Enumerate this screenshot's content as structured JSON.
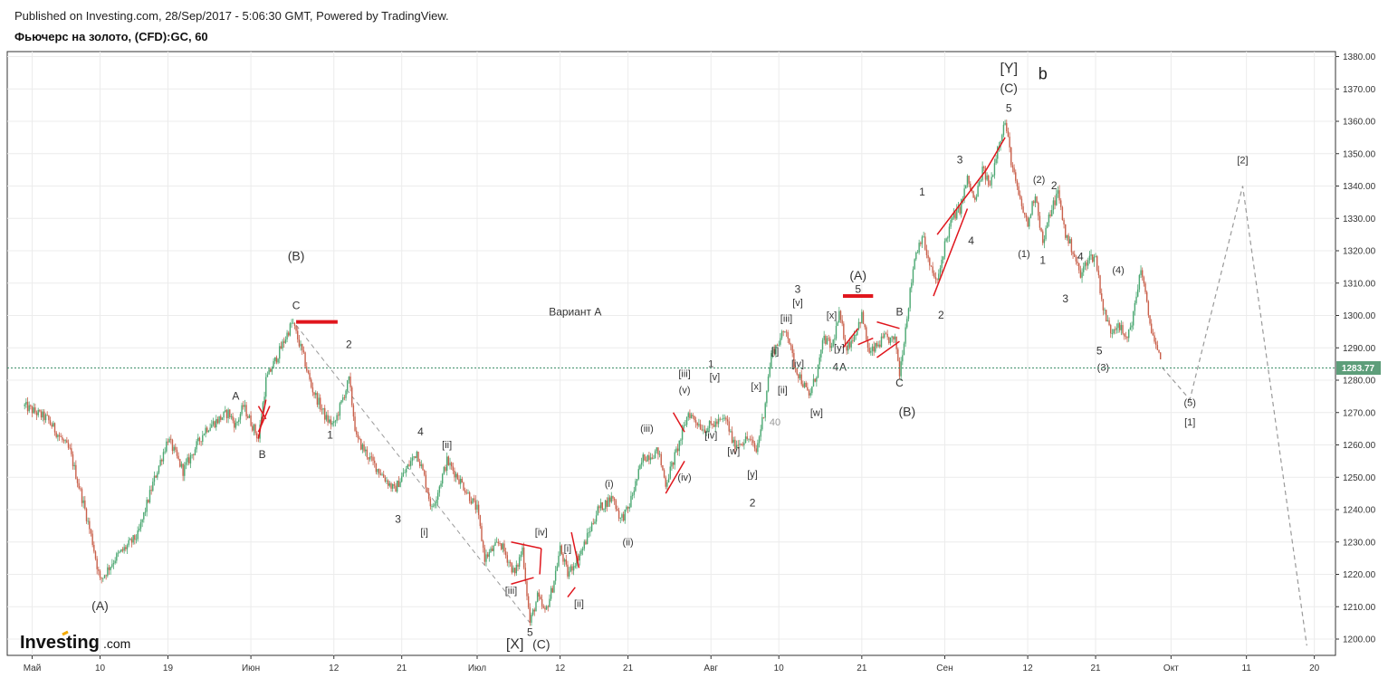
{
  "header": {
    "published": "Published on Investing.com, 28/Sep/2017 - 5:06:30 GMT, Powered by TradingView.",
    "instrument": "Фьючерс на золото, (CFD):GC, 60"
  },
  "logo": {
    "text": "Investing",
    "suffix": ".com"
  },
  "chart_data": {
    "type": "candlestick",
    "y_axis_ticks": [
      "1380.00",
      "1370.00",
      "1360.00",
      "1350.00",
      "1340.00",
      "1330.00",
      "1320.00",
      "1310.00",
      "1300.00",
      "1290.00",
      "1280.00",
      "1270.00",
      "1260.00",
      "1250.00",
      "1240.00",
      "1230.00",
      "1220.00",
      "1210.00",
      "1200.00"
    ],
    "x_axis_ticks": [
      {
        "label": "Май",
        "d": -9
      },
      {
        "label": "10",
        "d": 0
      },
      {
        "label": "19",
        "d": 9
      },
      {
        "label": "Июн",
        "d": 20
      },
      {
        "label": "12",
        "d": 31
      },
      {
        "label": "21",
        "d": 40
      },
      {
        "label": "Июл",
        "d": 50
      },
      {
        "label": "12",
        "d": 61
      },
      {
        "label": "21",
        "d": 70
      },
      {
        "label": "Авг",
        "d": 81
      },
      {
        "label": "10",
        "d": 90
      },
      {
        "label": "21",
        "d": 101
      },
      {
        "label": "Сен",
        "d": 112
      },
      {
        "label": "12",
        "d": 123
      },
      {
        "label": "21",
        "d": 132
      },
      {
        "label": "Окт",
        "d": 142
      },
      {
        "label": "11",
        "d": 152
      },
      {
        "label": "20",
        "d": 161
      }
    ],
    "ylim": [
      1195,
      1382
    ],
    "current_price": "1283.77",
    "colors": {
      "up": "#4aa771",
      "down": "#c9604b",
      "wave_line": "#e0161d",
      "projection": "#999999",
      "price_line": "#3f8f6a",
      "price_tag": "#5d9e7a"
    },
    "price_path": [
      {
        "d": -10,
        "p": 1272
      },
      {
        "d": -7,
        "p": 1268
      },
      {
        "d": -4,
        "p": 1258
      },
      {
        "d": -2,
        "p": 1240
      },
      {
        "d": -1,
        "p": 1230
      },
      {
        "d": 0,
        "p": 1218
      },
      {
        "d": 2,
        "p": 1225
      },
      {
        "d": 5,
        "p": 1232
      },
      {
        "d": 7,
        "p": 1248
      },
      {
        "d": 9,
        "p": 1262
      },
      {
        "d": 11,
        "p": 1252
      },
      {
        "d": 14,
        "p": 1265
      },
      {
        "d": 17,
        "p": 1270
      },
      {
        "d": 18,
        "p": 1266
      },
      {
        "d": 19,
        "p": 1272
      },
      {
        "d": 21,
        "p": 1262
      },
      {
        "d": 22,
        "p": 1280
      },
      {
        "d": 24,
        "p": 1290
      },
      {
        "d": 25.5,
        "p": 1298
      },
      {
        "d": 27,
        "p": 1287
      },
      {
        "d": 28,
        "p": 1278
      },
      {
        "d": 30,
        "p": 1268
      },
      {
        "d": 31,
        "p": 1266
      },
      {
        "d": 33,
        "p": 1280
      },
      {
        "d": 34,
        "p": 1262
      },
      {
        "d": 36,
        "p": 1255
      },
      {
        "d": 39,
        "p": 1246
      },
      {
        "d": 42,
        "p": 1258
      },
      {
        "d": 43,
        "p": 1250
      },
      {
        "d": 44,
        "p": 1240
      },
      {
        "d": 46,
        "p": 1255
      },
      {
        "d": 48,
        "p": 1248
      },
      {
        "d": 50,
        "p": 1240
      },
      {
        "d": 51,
        "p": 1225
      },
      {
        "d": 53,
        "p": 1230
      },
      {
        "d": 55,
        "p": 1220
      },
      {
        "d": 56,
        "p": 1228
      },
      {
        "d": 57,
        "p": 1205
      },
      {
        "d": 58,
        "p": 1213
      },
      {
        "d": 59,
        "p": 1208
      },
      {
        "d": 60,
        "p": 1216
      },
      {
        "d": 61,
        "p": 1228
      },
      {
        "d": 62,
        "p": 1220
      },
      {
        "d": 64,
        "p": 1228
      },
      {
        "d": 66,
        "p": 1240
      },
      {
        "d": 68,
        "p": 1244
      },
      {
        "d": 69,
        "p": 1237
      },
      {
        "d": 70,
        "p": 1240
      },
      {
        "d": 72,
        "p": 1256
      },
      {
        "d": 74,
        "p": 1258
      },
      {
        "d": 75,
        "p": 1248
      },
      {
        "d": 77,
        "p": 1262
      },
      {
        "d": 78,
        "p": 1270
      },
      {
        "d": 80,
        "p": 1265
      },
      {
        "d": 81,
        "p": 1266
      },
      {
        "d": 83,
        "p": 1268
      },
      {
        "d": 84,
        "p": 1260
      },
      {
        "d": 86,
        "p": 1262
      },
      {
        "d": 87,
        "p": 1258
      },
      {
        "d": 88,
        "p": 1270
      },
      {
        "d": 89,
        "p": 1288
      },
      {
        "d": 90,
        "p": 1292
      },
      {
        "d": 91,
        "p": 1296
      },
      {
        "d": 92,
        "p": 1285
      },
      {
        "d": 94,
        "p": 1275
      },
      {
        "d": 95,
        "p": 1282
      },
      {
        "d": 96,
        "p": 1293
      },
      {
        "d": 97,
        "p": 1290
      },
      {
        "d": 98,
        "p": 1300
      },
      {
        "d": 99,
        "p": 1290
      },
      {
        "d": 100,
        "p": 1294
      },
      {
        "d": 101,
        "p": 1300
      },
      {
        "d": 102,
        "p": 1288
      },
      {
        "d": 104,
        "p": 1293
      },
      {
        "d": 105.5,
        "p": 1292
      },
      {
        "d": 106,
        "p": 1282
      },
      {
        "d": 107,
        "p": 1300
      },
      {
        "d": 108,
        "p": 1318
      },
      {
        "d": 109,
        "p": 1325
      },
      {
        "d": 110,
        "p": 1315
      },
      {
        "d": 111,
        "p": 1310
      },
      {
        "d": 112,
        "p": 1322
      },
      {
        "d": 113,
        "p": 1330
      },
      {
        "d": 114,
        "p": 1333
      },
      {
        "d": 115,
        "p": 1342
      },
      {
        "d": 116,
        "p": 1335
      },
      {
        "d": 117,
        "p": 1345
      },
      {
        "d": 118,
        "p": 1340
      },
      {
        "d": 119,
        "p": 1352
      },
      {
        "d": 120,
        "p": 1360
      },
      {
        "d": 121,
        "p": 1345
      },
      {
        "d": 122,
        "p": 1335
      },
      {
        "d": 123,
        "p": 1328
      },
      {
        "d": 124,
        "p": 1338
      },
      {
        "d": 125,
        "p": 1322
      },
      {
        "d": 126,
        "p": 1332
      },
      {
        "d": 127,
        "p": 1338
      },
      {
        "d": 128,
        "p": 1325
      },
      {
        "d": 129,
        "p": 1320
      },
      {
        "d": 130,
        "p": 1312
      },
      {
        "d": 131,
        "p": 1318
      },
      {
        "d": 132,
        "p": 1318
      },
      {
        "d": 133,
        "p": 1302
      },
      {
        "d": 134,
        "p": 1295
      },
      {
        "d": 135,
        "p": 1298
      },
      {
        "d": 136,
        "p": 1292
      },
      {
        "d": 137,
        "p": 1300
      },
      {
        "d": 138,
        "p": 1315
      },
      {
        "d": 139,
        "p": 1300
      },
      {
        "d": 140,
        "p": 1290
      },
      {
        "d": 140.8,
        "p": 1284
      }
    ],
    "wave_lines": [
      [
        [
          21,
          1272
        ],
        [
          22,
          1268
        ]
      ],
      [
        [
          21,
          1264
        ],
        [
          22.5,
          1272
        ]
      ],
      [
        [
          21,
          1262
        ],
        [
          22,
          1274
        ]
      ],
      [
        [
          26,
          1298
        ],
        [
          31.5,
          1298
        ]
      ],
      [
        [
          54.5,
          1230
        ],
        [
          58.5,
          1228
        ]
      ],
      [
        [
          54.5,
          1217
        ],
        [
          57.5,
          1219
        ]
      ],
      [
        [
          58.5,
          1228
        ],
        [
          58.3,
          1220
        ]
      ],
      [
        [
          62.5,
          1233
        ],
        [
          63.5,
          1222
        ]
      ],
      [
        [
          62,
          1213
        ],
        [
          63,
          1216
        ]
      ],
      [
        [
          76,
          1270
        ],
        [
          77.5,
          1264
        ]
      ],
      [
        [
          75,
          1245
        ],
        [
          77.5,
          1255
        ]
      ],
      [
        [
          98.5,
          1306
        ],
        [
          102.5,
          1306
        ]
      ],
      [
        [
          100.5,
          1296
        ],
        [
          98.5,
          1290
        ]
      ],
      [
        [
          100.5,
          1291
        ],
        [
          102.5,
          1293
        ]
      ],
      [
        [
          103,
          1298
        ],
        [
          106,
          1296
        ]
      ],
      [
        [
          103,
          1287
        ],
        [
          106,
          1292
        ]
      ],
      [
        [
          111,
          1325
        ],
        [
          117.5,
          1345
        ]
      ],
      [
        [
          117.5,
          1345
        ],
        [
          120,
          1355
        ]
      ],
      [
        [
          110.5,
          1306
        ],
        [
          115,
          1333
        ]
      ]
    ],
    "projection_path": [
      [
        140.8,
        1284
      ],
      [
        144.5,
        1274
      ],
      [
        151.5,
        1340
      ],
      [
        160,
        1198
      ]
    ],
    "reference_guide": [
      [
        26,
        1297
      ],
      [
        57,
        1205
      ]
    ],
    "annotations": [
      {
        "t": "(A)",
        "d": 0,
        "p": 1209,
        "s": 14,
        "c": "#333"
      },
      {
        "t": "(B)",
        "d": 26,
        "p": 1317,
        "s": 14,
        "c": "#333"
      },
      {
        "t": "C",
        "d": 26,
        "p": 1302,
        "s": 12,
        "c": "#333"
      },
      {
        "t": "A",
        "d": 18,
        "p": 1274,
        "s": 12,
        "c": "#333"
      },
      {
        "t": "B",
        "d": 21.5,
        "p": 1256,
        "s": 12,
        "c": "#333"
      },
      {
        "t": "2",
        "d": 33,
        "p": 1290,
        "s": 12,
        "c": "#333"
      },
      {
        "t": "1",
        "d": 30.5,
        "p": 1262,
        "s": 12,
        "c": "#333"
      },
      {
        "t": "4",
        "d": 42.5,
        "p": 1263,
        "s": 12,
        "c": "#333"
      },
      {
        "t": "3",
        "d": 39.5,
        "p": 1236,
        "s": 12,
        "c": "#333"
      },
      {
        "t": "[ii]",
        "d": 46,
        "p": 1259,
        "s": 11,
        "c": "#333"
      },
      {
        "t": "[i]",
        "d": 43,
        "p": 1232,
        "s": 11,
        "c": "#333"
      },
      {
        "t": "Вариант А",
        "d": 63,
        "p": 1300,
        "s": 12,
        "c": "#333"
      },
      {
        "t": "[iv]",
        "d": 58.5,
        "p": 1232,
        "s": 11,
        "c": "#333"
      },
      {
        "t": "[iii]",
        "d": 54.5,
        "p": 1214,
        "s": 11,
        "c": "#333"
      },
      {
        "t": "5",
        "d": 57,
        "p": 1201,
        "s": 12,
        "c": "#333"
      },
      {
        "t": "[X]",
        "d": 55,
        "p": 1197,
        "s": 16,
        "c": "#333"
      },
      {
        "t": "(C)",
        "d": 58.5,
        "p": 1197,
        "s": 14,
        "c": "#333"
      },
      {
        "t": "[i]",
        "d": 62,
        "p": 1227,
        "s": 11,
        "c": "#333"
      },
      {
        "t": "[ii]",
        "d": 63.5,
        "p": 1210,
        "s": 11,
        "c": "#333"
      },
      {
        "t": "(i)",
        "d": 67.5,
        "p": 1247,
        "s": 11,
        "c": "#333"
      },
      {
        "t": "(ii)",
        "d": 70,
        "p": 1229,
        "s": 11,
        "c": "#333"
      },
      {
        "t": "(iii)",
        "d": 72.5,
        "p": 1264,
        "s": 11,
        "c": "#333"
      },
      {
        "t": "(iv)",
        "d": 77.5,
        "p": 1249,
        "s": 11,
        "c": "#333"
      },
      {
        "t": "(v)",
        "d": 77.5,
        "p": 1276,
        "s": 11,
        "c": "#333"
      },
      {
        "t": "[iii]",
        "d": 77.5,
        "p": 1281,
        "s": 11,
        "c": "#333"
      },
      {
        "t": "1",
        "d": 81,
        "p": 1284,
        "s": 11,
        "c": "#333"
      },
      {
        "t": "[v]",
        "d": 81.5,
        "p": 1280,
        "s": 11,
        "c": "#333"
      },
      {
        "t": "[iv]",
        "d": 81,
        "p": 1262,
        "s": 11,
        "c": "#333"
      },
      {
        "t": "[w]",
        "d": 84,
        "p": 1257,
        "s": 11,
        "c": "#333"
      },
      {
        "t": "[x]",
        "d": 87,
        "p": 1277,
        "s": 11,
        "c": "#333"
      },
      {
        "t": "[ii]",
        "d": 90.5,
        "p": 1276,
        "s": 11,
        "c": "#333"
      },
      {
        "t": "[y]",
        "d": 86.5,
        "p": 1250,
        "s": 11,
        "c": "#333"
      },
      {
        "t": "2",
        "d": 86.5,
        "p": 1241,
        "s": 12,
        "c": "#333"
      },
      {
        "t": "40",
        "d": 89.5,
        "p": 1266,
        "s": 11,
        "c": "#999"
      },
      {
        "t": "[i]",
        "d": 89.5,
        "p": 1288,
        "s": 11,
        "c": "#333"
      },
      {
        "t": "[iii]",
        "d": 91,
        "p": 1298,
        "s": 11,
        "c": "#333"
      },
      {
        "t": "[iv]",
        "d": 92.5,
        "p": 1284,
        "s": 11,
        "c": "#333"
      },
      {
        "t": "[v]",
        "d": 92.5,
        "p": 1303,
        "s": 11,
        "c": "#333"
      },
      {
        "t": "3",
        "d": 92.5,
        "p": 1307,
        "s": 12,
        "c": "#333"
      },
      {
        "t": "[w]",
        "d": 95,
        "p": 1269,
        "s": 11,
        "c": "#333"
      },
      {
        "t": "[x]",
        "d": 97,
        "p": 1299,
        "s": 11,
        "c": "#333"
      },
      {
        "t": "[y]",
        "d": 98,
        "p": 1289,
        "s": 11,
        "c": "#333"
      },
      {
        "t": "4",
        "d": 97.5,
        "p": 1283,
        "s": 12,
        "c": "#333"
      },
      {
        "t": "A",
        "d": 98.5,
        "p": 1283,
        "s": 12,
        "c": "#333"
      },
      {
        "t": "(A)",
        "d": 100.5,
        "p": 1311,
        "s": 14,
        "c": "#333"
      },
      {
        "t": "5",
        "d": 100.5,
        "p": 1307,
        "s": 12,
        "c": "#333"
      },
      {
        "t": "B",
        "d": 106,
        "p": 1300,
        "s": 12,
        "c": "#333"
      },
      {
        "t": "C",
        "d": 106,
        "p": 1278,
        "s": 12,
        "c": "#333"
      },
      {
        "t": "(B)",
        "d": 107,
        "p": 1269,
        "s": 14,
        "c": "#333"
      },
      {
        "t": "1",
        "d": 109,
        "p": 1337,
        "s": 12,
        "c": "#333"
      },
      {
        "t": "2",
        "d": 111.5,
        "p": 1299,
        "s": 12,
        "c": "#333"
      },
      {
        "t": "3",
        "d": 114,
        "p": 1347,
        "s": 12,
        "c": "#333"
      },
      {
        "t": "4",
        "d": 115.5,
        "p": 1322,
        "s": 12,
        "c": "#333"
      },
      {
        "t": "[Y]",
        "d": 120.5,
        "p": 1375,
        "s": 16,
        "c": "#333"
      },
      {
        "t": "b",
        "d": 125,
        "p": 1373,
        "s": 18,
        "c": "#222"
      },
      {
        "t": "(C)",
        "d": 120.5,
        "p": 1369,
        "s": 14,
        "c": "#333"
      },
      {
        "t": "5",
        "d": 120.5,
        "p": 1363,
        "s": 12,
        "c": "#333"
      },
      {
        "t": "(1)",
        "d": 122.5,
        "p": 1318,
        "s": 11,
        "c": "#333"
      },
      {
        "t": "(2)",
        "d": 124.5,
        "p": 1341,
        "s": 11,
        "c": "#333"
      },
      {
        "t": "1",
        "d": 125,
        "p": 1316,
        "s": 12,
        "c": "#333"
      },
      {
        "t": "2",
        "d": 126.5,
        "p": 1339,
        "s": 12,
        "c": "#333"
      },
      {
        "t": "3",
        "d": 128,
        "p": 1304,
        "s": 12,
        "c": "#333"
      },
      {
        "t": "4",
        "d": 130,
        "p": 1317,
        "s": 12,
        "c": "#333"
      },
      {
        "t": "(4)",
        "d": 135,
        "p": 1313,
        "s": 11,
        "c": "#333"
      },
      {
        "t": "5",
        "d": 132.5,
        "p": 1288,
        "s": 12,
        "c": "#333"
      },
      {
        "t": "(3)",
        "d": 133,
        "p": 1283,
        "s": 11,
        "c": "#333"
      },
      {
        "t": "[2]",
        "d": 151.5,
        "p": 1347,
        "s": 11,
        "c": "#333"
      },
      {
        "t": "(5)",
        "d": 144.5,
        "p": 1272,
        "s": 11,
        "c": "#333"
      },
      {
        "t": "[1]",
        "d": 144.5,
        "p": 1266,
        "s": 11,
        "c": "#333"
      }
    ]
  }
}
